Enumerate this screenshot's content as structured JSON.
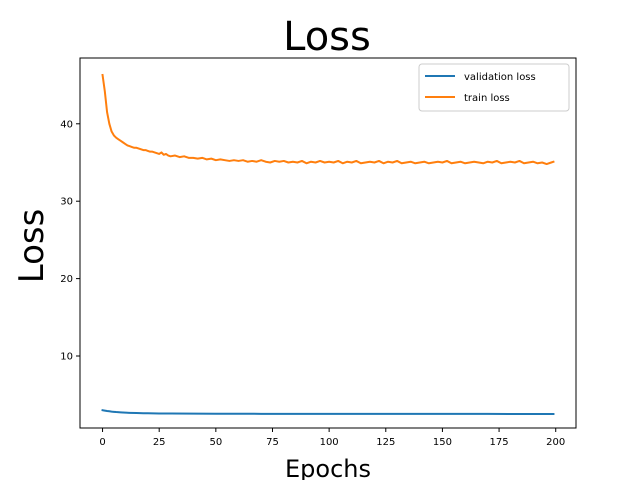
{
  "chart_data": {
    "type": "line",
    "title": "Loss",
    "xlabel": "Epochs",
    "ylabel": "Loss",
    "xlim": [
      -9.95,
      208.95
    ],
    "ylim": [
      0.7,
      48.5
    ],
    "xticks": [
      0,
      25,
      50,
      75,
      100,
      125,
      150,
      175,
      200
    ],
    "yticks": [
      10,
      20,
      30,
      40
    ],
    "grid": false,
    "legend_position": "top-right",
    "series": [
      {
        "name": "validation loss",
        "color": "#1f77b4",
        "x": [
          0,
          1,
          2,
          3,
          4,
          5,
          6,
          8,
          10,
          12,
          15,
          18,
          20,
          25,
          30,
          40,
          50,
          60,
          70,
          80,
          90,
          100,
          110,
          120,
          130,
          140,
          150,
          160,
          170,
          180,
          190,
          199
        ],
        "y": [
          3.0,
          2.95,
          2.9,
          2.86,
          2.82,
          2.79,
          2.76,
          2.72,
          2.69,
          2.66,
          2.63,
          2.61,
          2.6,
          2.58,
          2.57,
          2.55,
          2.54,
          2.54,
          2.53,
          2.53,
          2.53,
          2.52,
          2.52,
          2.52,
          2.52,
          2.52,
          2.52,
          2.52,
          2.52,
          2.51,
          2.51,
          2.51
        ]
      },
      {
        "name": "train loss",
        "color": "#ff7f0e",
        "x": [
          0,
          1,
          2,
          3,
          4,
          5,
          6,
          7,
          8,
          9,
          10,
          11,
          12,
          13,
          14,
          15,
          16,
          17,
          18,
          19,
          20,
          21,
          22,
          23,
          24,
          25,
          26,
          27,
          28,
          29,
          30,
          32,
          34,
          36,
          38,
          40,
          42,
          44,
          46,
          48,
          50,
          52,
          54,
          56,
          58,
          60,
          62,
          64,
          66,
          68,
          70,
          72,
          74,
          76,
          78,
          80,
          82,
          84,
          86,
          88,
          90,
          92,
          94,
          96,
          98,
          100,
          102,
          104,
          106,
          108,
          110,
          112,
          114,
          116,
          118,
          120,
          122,
          124,
          126,
          128,
          130,
          132,
          134,
          136,
          138,
          140,
          142,
          144,
          146,
          148,
          150,
          152,
          154,
          156,
          158,
          160,
          162,
          164,
          166,
          168,
          170,
          172,
          174,
          176,
          178,
          180,
          182,
          184,
          186,
          188,
          190,
          192,
          194,
          196,
          198,
          199
        ],
        "y": [
          46.3,
          44.2,
          41.5,
          40.0,
          39.0,
          38.5,
          38.2,
          38.0,
          37.8,
          37.6,
          37.4,
          37.2,
          37.1,
          37.0,
          36.9,
          36.9,
          36.8,
          36.7,
          36.6,
          36.6,
          36.5,
          36.4,
          36.4,
          36.3,
          36.2,
          36.1,
          36.3,
          36.0,
          36.1,
          35.9,
          35.8,
          35.9,
          35.7,
          35.8,
          35.6,
          35.6,
          35.5,
          35.6,
          35.4,
          35.5,
          35.3,
          35.4,
          35.3,
          35.2,
          35.3,
          35.2,
          35.3,
          35.1,
          35.2,
          35.1,
          35.3,
          35.1,
          35.0,
          35.2,
          35.1,
          35.2,
          35.0,
          35.1,
          35.0,
          35.2,
          34.9,
          35.1,
          35.0,
          35.2,
          35.0,
          35.1,
          35.0,
          35.2,
          34.9,
          35.1,
          35.0,
          35.2,
          34.9,
          35.0,
          35.1,
          35.0,
          35.2,
          34.9,
          35.1,
          35.0,
          35.2,
          34.9,
          35.0,
          35.1,
          34.9,
          35.0,
          35.1,
          34.9,
          35.0,
          35.1,
          35.0,
          35.2,
          34.9,
          35.0,
          35.1,
          34.9,
          35.0,
          35.1,
          35.0,
          34.9,
          35.1,
          35.0,
          35.2,
          34.9,
          35.0,
          35.1,
          35.0,
          35.2,
          34.9,
          35.0,
          35.1,
          34.9,
          35.0,
          34.8,
          35.0,
          35.1
        ]
      }
    ]
  }
}
